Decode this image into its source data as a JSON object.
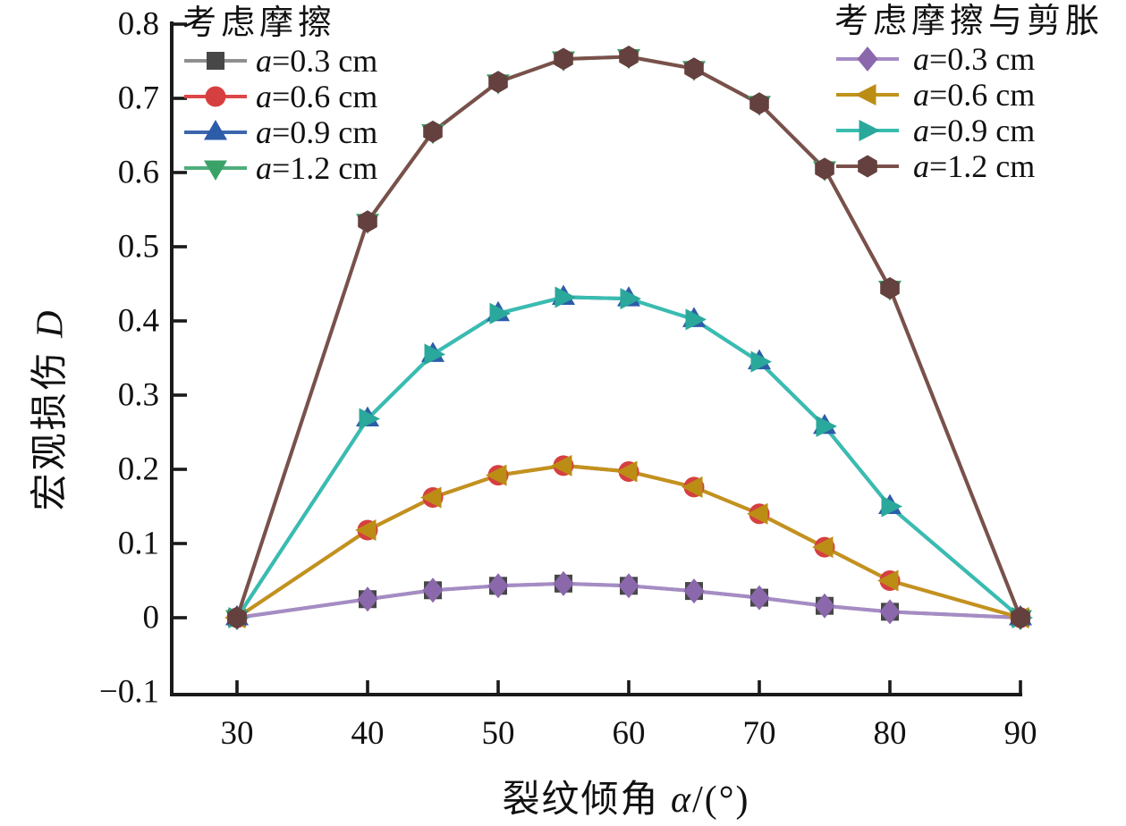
{
  "figure": {
    "xlabel_prefix": "裂纹倾角 ",
    "xlabel_var": "α",
    "xlabel_rest": "/(°)",
    "ylabel_prefix": "宏观损伤 ",
    "ylabel_var": "D"
  },
  "legend_left": {
    "title": "考虑摩擦",
    "items": [
      {
        "label_var": "a",
        "label_rest": "=0.3 cm",
        "marker": "square",
        "line_color": "#8f8f8f",
        "marker_color": "#474747"
      },
      {
        "label_var": "a",
        "label_rest": "=0.6 cm",
        "marker": "circle",
        "line_color": "#dd4747",
        "marker_color": "#d63f3f"
      },
      {
        "label_var": "a",
        "label_rest": "=0.9 cm",
        "marker": "triangle-up",
        "line_color": "#3c66ad",
        "marker_color": "#2d5ca9"
      },
      {
        "label_var": "a",
        "label_rest": "=1.2 cm",
        "marker": "triangle-down",
        "line_color": "#4fae7c",
        "marker_color": "#3aa267"
      }
    ]
  },
  "legend_right": {
    "title": "考虑摩擦与剪胀",
    "items": [
      {
        "label_var": "a",
        "label_rest": "=0.3 cm",
        "marker": "diamond",
        "line_color": "#a58cc4",
        "marker_color": "#8a68ab"
      },
      {
        "label_var": "a",
        "label_rest": "=0.6 cm",
        "marker": "triangle-left",
        "line_color": "#c1931d",
        "marker_color": "#bc8d15"
      },
      {
        "label_var": "a",
        "label_rest": "=0.9 cm",
        "marker": "triangle-right",
        "line_color": "#38bdb0",
        "marker_color": "#2aa89b"
      },
      {
        "label_var": "a",
        "label_rest": "=1.2 cm",
        "marker": "hexagon",
        "line_color": "#7b504b",
        "marker_color": "#64403e"
      }
    ]
  },
  "chart_data": {
    "type": "line",
    "title": "",
    "xlabel": "裂纹倾角 α/(°)",
    "ylabel": "宏观损伤 D",
    "xlim": [
      25,
      95
    ],
    "ylim": [
      -0.1,
      0.8
    ],
    "grid": false,
    "legend_position": "top-left and top-right, inside axes",
    "x_tick_values": [
      30,
      40,
      50,
      60,
      70,
      80,
      90
    ],
    "x_tick_labels": [
      "30",
      "40",
      "50",
      "60",
      "70",
      "80",
      "90"
    ],
    "y_tick_values": [
      0.8,
      0.7,
      0.6,
      0.5,
      0.4,
      0.3,
      0.2,
      0.1,
      0,
      -0.1
    ],
    "y_tick_labels": [
      "0.8",
      "0.7",
      "0.6",
      "0.5",
      "0.4",
      "0.3",
      "0.2",
      "0.1",
      "0",
      "−0.1"
    ],
    "x": [
      30,
      40,
      45,
      50,
      55,
      60,
      65,
      70,
      75,
      80,
      90
    ],
    "series": [
      {
        "group": "考虑摩擦",
        "name": "a=0.3 cm",
        "marker": "square",
        "line_color": "#8f8f8f",
        "marker_color": "#474747",
        "values": [
          0,
          0.025,
          0.037,
          0.043,
          0.046,
          0.043,
          0.036,
          0.027,
          0.016,
          0.008,
          0
        ]
      },
      {
        "group": "考虑摩擦",
        "name": "a=0.6 cm",
        "marker": "circle",
        "line_color": "#dd4747",
        "marker_color": "#d63f3f",
        "values": [
          0,
          0.118,
          0.162,
          0.192,
          0.205,
          0.197,
          0.176,
          0.14,
          0.095,
          0.05,
          0
        ]
      },
      {
        "group": "考虑摩擦",
        "name": "a=0.9 cm",
        "marker": "triangle-up",
        "line_color": "#3c66ad",
        "marker_color": "#2d5ca9",
        "values": [
          0,
          0.268,
          0.355,
          0.41,
          0.432,
          0.43,
          0.402,
          0.345,
          0.258,
          0.15,
          0
        ]
      },
      {
        "group": "考虑摩擦",
        "name": "a=1.2 cm",
        "marker": "triangle-down",
        "line_color": "#4fae7c",
        "marker_color": "#3aa267",
        "values": [
          0,
          0.534,
          0.655,
          0.722,
          0.753,
          0.756,
          0.74,
          0.693,
          0.605,
          0.444,
          0
        ]
      },
      {
        "group": "考虑摩擦与剪胀",
        "name": "a=0.3 cm",
        "marker": "diamond",
        "line_color": "#a58cc4",
        "marker_color": "#8a68ab",
        "values": [
          0,
          0.025,
          0.037,
          0.043,
          0.046,
          0.043,
          0.036,
          0.027,
          0.016,
          0.008,
          0
        ]
      },
      {
        "group": "考虑摩擦与剪胀",
        "name": "a=0.6 cm",
        "marker": "triangle-left",
        "line_color": "#c1931d",
        "marker_color": "#bc8d15",
        "values": [
          0,
          0.118,
          0.162,
          0.192,
          0.205,
          0.197,
          0.176,
          0.14,
          0.095,
          0.05,
          0
        ]
      },
      {
        "group": "考虑摩擦与剪胀",
        "name": "a=0.9 cm",
        "marker": "triangle-right",
        "line_color": "#38bdb0",
        "marker_color": "#2aa89b",
        "values": [
          0,
          0.268,
          0.355,
          0.41,
          0.432,
          0.43,
          0.402,
          0.345,
          0.258,
          0.15,
          0
        ]
      },
      {
        "group": "考虑摩擦与剪胀",
        "name": "a=1.2 cm",
        "marker": "hexagon",
        "line_color": "#7b504b",
        "marker_color": "#64403e",
        "values": [
          0,
          0.534,
          0.655,
          0.722,
          0.753,
          0.756,
          0.74,
          0.693,
          0.605,
          0.444,
          0
        ]
      }
    ],
    "axis_color": "#1a1a1a"
  }
}
